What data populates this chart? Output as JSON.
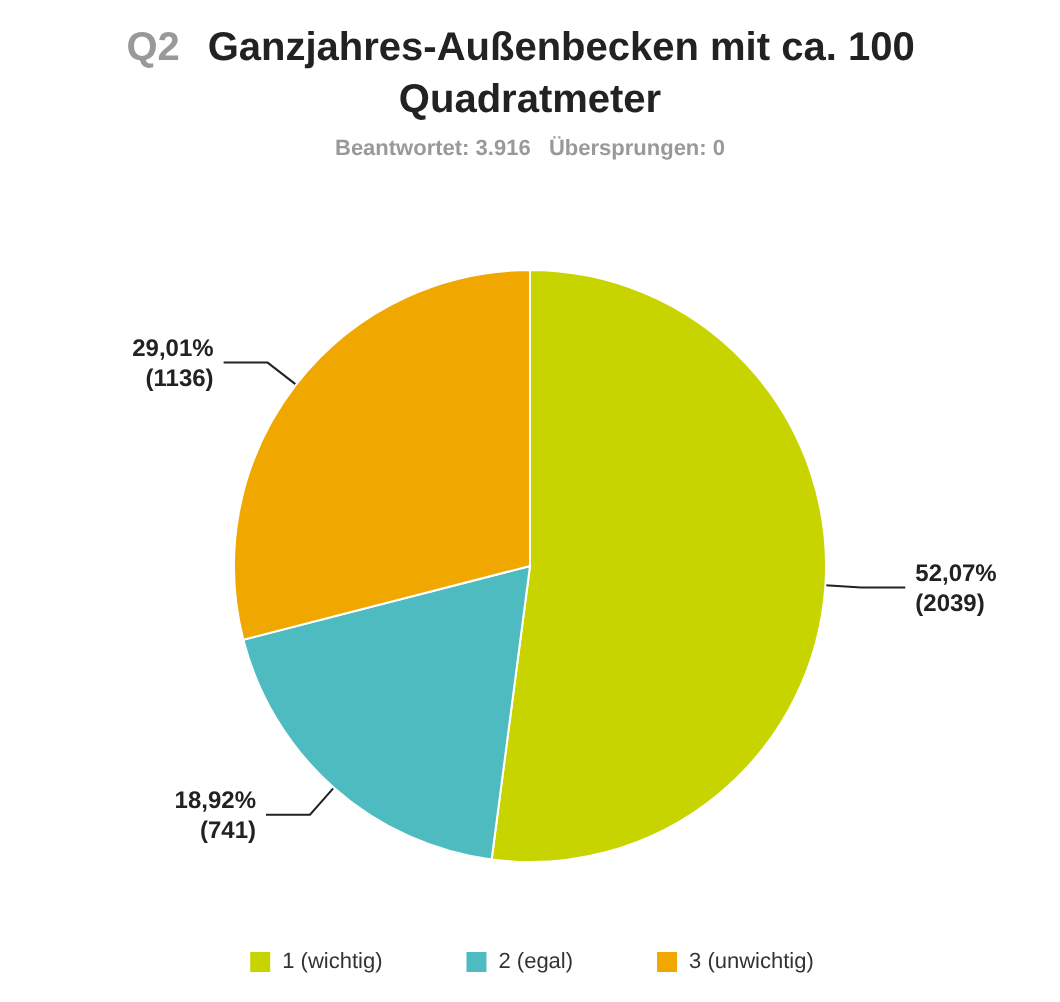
{
  "chart_data": {
    "type": "pie",
    "title": "Q2 Ganzjahres-Außenbecken mit ca. 100 Quadratmeter",
    "subtitle": "Beantwortet: 3.916   Übersprungen: 0",
    "categories": [
      "1 (wichtig)",
      "2 (egal)",
      "3 (unwichtig)"
    ],
    "values": [
      2039,
      741,
      1136
    ],
    "colors": [
      "#c8d400",
      "#4dbbbf",
      "#f0a800"
    ],
    "value_labels": [
      "52,07%\n(2039)",
      "18,92%\n(741)",
      "29,01%\n(1136)"
    ],
    "legend": "bottom"
  }
}
